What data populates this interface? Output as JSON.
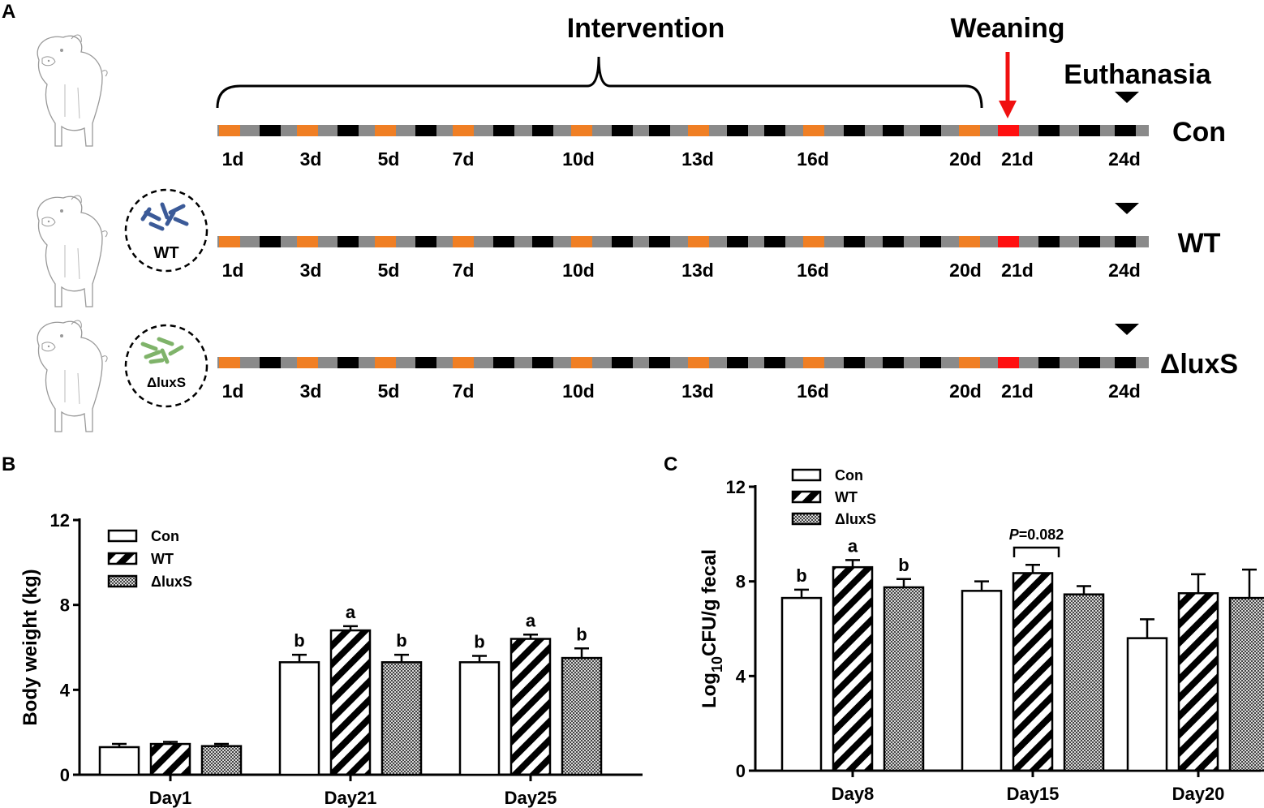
{
  "panel_a": {
    "label": "A",
    "intervention_label": "Intervention",
    "weaning_label": "Weaning",
    "euthanasia_label": "Euthanasia",
    "groups": [
      "Con",
      "WT",
      "ΔluxS"
    ],
    "wt_badge": "WT",
    "luxs_badge": "ΔluxS",
    "day_labels": [
      "1d",
      "3d",
      "5d",
      "7d",
      "10d",
      "13d",
      "16d",
      "20d",
      "21d",
      "24d"
    ]
  },
  "panel_b_label": "B",
  "panel_c_label": "C",
  "chart_data": [
    {
      "type": "bar",
      "title": "",
      "xlabel": "",
      "ylabel": "Body weight (kg)",
      "ylim": [
        0,
        12
      ],
      "yticks": [
        "0",
        "4",
        "8",
        "12"
      ],
      "categories": [
        "Day1",
        "Day21",
        "Day25"
      ],
      "series": [
        {
          "name": "Con",
          "values": [
            1.3,
            5.3,
            5.3
          ],
          "errors": [
            0.15,
            0.35,
            0.3
          ]
        },
        {
          "name": "WT",
          "values": [
            1.45,
            6.8,
            6.4
          ],
          "errors": [
            0.1,
            0.2,
            0.2
          ]
        },
        {
          "name": "ΔluxS",
          "values": [
            1.35,
            5.3,
            5.5
          ],
          "errors": [
            0.1,
            0.35,
            0.45
          ]
        }
      ],
      "letters": [
        [
          "",
          "",
          ""
        ],
        [
          "b",
          "a",
          "b"
        ],
        [
          "b",
          "a",
          "b"
        ]
      ],
      "legend": [
        "Con",
        "WT",
        "ΔluxS"
      ],
      "legend_position": "top-left"
    },
    {
      "type": "bar",
      "title": "",
      "xlabel": "",
      "ylabel": "Log10CFU/g fecal",
      "ylabel_parts": [
        "Log",
        "10",
        "CFU/g fecal"
      ],
      "ylim": [
        0,
        12
      ],
      "yticks": [
        "0",
        "4",
        "8",
        "12"
      ],
      "categories": [
        "Day8",
        "Day15",
        "Day20"
      ],
      "series": [
        {
          "name": "Con",
          "values": [
            7.3,
            7.6,
            5.6
          ],
          "errors": [
            0.35,
            0.4,
            0.8
          ]
        },
        {
          "name": "WT",
          "values": [
            8.6,
            8.35,
            7.5
          ],
          "errors": [
            0.3,
            0.35,
            0.8
          ]
        },
        {
          "name": "ΔluxS",
          "values": [
            7.75,
            7.45,
            7.3
          ],
          "errors": [
            0.35,
            0.35,
            1.2
          ]
        }
      ],
      "letters": [
        [
          "b",
          "a",
          "b"
        ],
        [
          "",
          "",
          ""
        ],
        [
          "",
          "",
          ""
        ]
      ],
      "annotation": {
        "p_italic": "P",
        "p_rest": "=0.082"
      },
      "legend": [
        "Con",
        "WT",
        "ΔluxS"
      ],
      "legend_position": "top-left"
    }
  ]
}
